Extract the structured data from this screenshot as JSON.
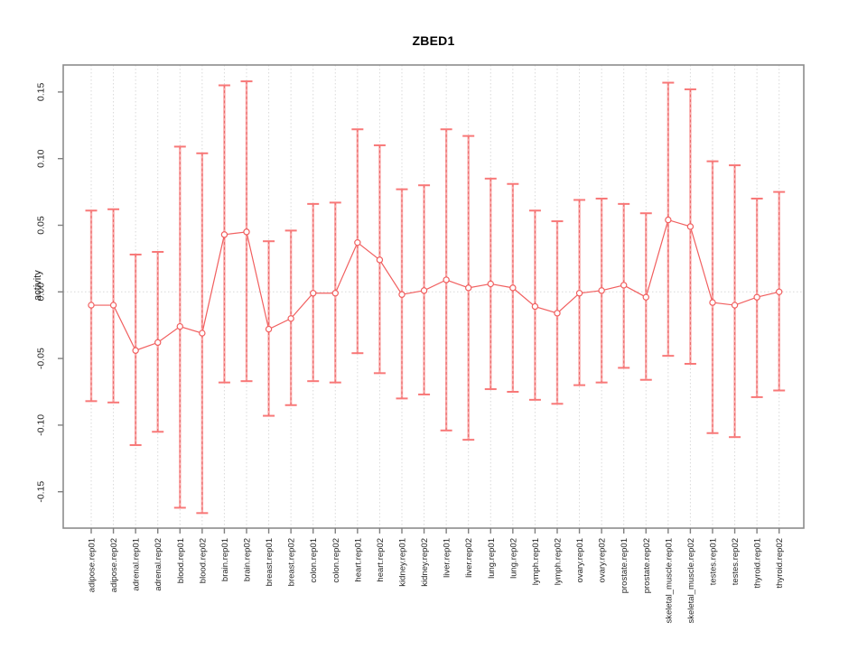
{
  "title": "ZBED1",
  "chart_data": {
    "type": "line",
    "subtype": "points-with-error-bars",
    "title": "ZBED1",
    "xlabel": "",
    "ylabel": "activity",
    "ylim": [
      -0.175,
      0.175
    ],
    "grid": "vertical dotted gridlines at each category; dotted horizontal line at 0",
    "legend_position": "none",
    "yticks": [
      {
        "value": 0.15,
        "label": "0.15"
      },
      {
        "value": 0.1,
        "label": "0.10"
      },
      {
        "value": 0.05,
        "label": "0.05"
      },
      {
        "value": 0.0,
        "label": "0.00"
      },
      {
        "value": -0.05,
        "label": "-0.05"
      },
      {
        "value": -0.1,
        "label": "-0.10"
      },
      {
        "value": -0.15,
        "label": "-0.15"
      }
    ],
    "categories": [
      "adipose.rep01",
      "adipose.rep02",
      "adrenal.rep01",
      "adrenal.rep02",
      "blood.rep01",
      "blood.rep02",
      "brain.rep01",
      "brain.rep02",
      "breast.rep01",
      "breast.rep02",
      "colon.rep01",
      "colon.rep02",
      "heart.rep01",
      "heart.rep02",
      "kidney.rep01",
      "kidney.rep02",
      "liver.rep01",
      "liver.rep02",
      "lung.rep01",
      "lung.rep02",
      "lymph.rep01",
      "lymph.rep02",
      "ovary.rep01",
      "ovary.rep02",
      "prostate.rep01",
      "prostate.rep02",
      "skeletal_muscle.rep01",
      "skeletal_muscle.rep02",
      "testes.rep01",
      "testes.rep02",
      "thyroid.rep01",
      "thyroid.rep02"
    ],
    "series": [
      {
        "name": "activity",
        "values": [
          -0.01,
          -0.01,
          -0.044,
          -0.038,
          -0.026,
          -0.031,
          0.043,
          0.045,
          -0.028,
          -0.02,
          -0.001,
          -0.001,
          0.037,
          0.024,
          -0.002,
          0.001,
          0.009,
          0.003,
          0.006,
          0.003,
          -0.011,
          -0.016,
          -0.001,
          0.001,
          0.005,
          -0.004,
          0.054,
          0.049,
          -0.008,
          -0.01,
          -0.004,
          0.0
        ],
        "lower": [
          -0.082,
          -0.083,
          -0.115,
          -0.105,
          -0.162,
          -0.166,
          -0.068,
          -0.067,
          -0.093,
          -0.085,
          -0.067,
          -0.068,
          -0.046,
          -0.061,
          -0.08,
          -0.077,
          -0.104,
          -0.111,
          -0.073,
          -0.075,
          -0.081,
          -0.084,
          -0.07,
          -0.068,
          -0.057,
          -0.066,
          -0.048,
          -0.054,
          -0.106,
          -0.109,
          -0.079,
          -0.074
        ],
        "upper": [
          0.061,
          0.062,
          0.028,
          0.03,
          0.109,
          0.104,
          0.155,
          0.158,
          0.038,
          0.046,
          0.066,
          0.067,
          0.122,
          0.11,
          0.077,
          0.08,
          0.122,
          0.117,
          0.085,
          0.081,
          0.061,
          0.053,
          0.069,
          0.07,
          0.066,
          0.059,
          0.157,
          0.152,
          0.098,
          0.095,
          0.07,
          0.075
        ]
      }
    ],
    "colors": {
      "point": "#f15f5f",
      "series_line": "#f15f5f",
      "error_bar": "#f9a8a8",
      "error_bar_dash": "#e96060",
      "error_bar_cap": "#f87878",
      "gridline": "#d9d9d9",
      "plot_border": "#8c8c8c",
      "tick": "#808080",
      "text": "#262626"
    }
  }
}
